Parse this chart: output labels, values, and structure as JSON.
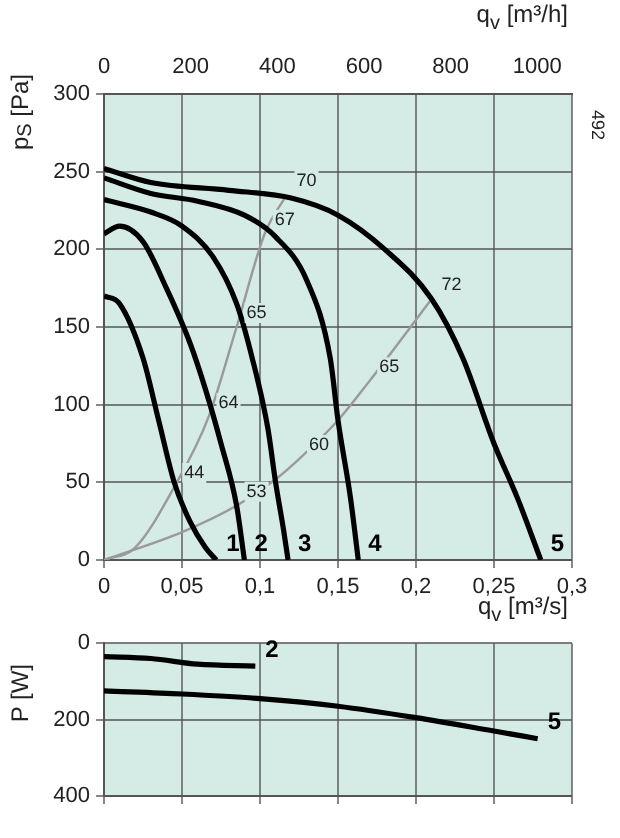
{
  "chart_data": [
    {
      "type": "line",
      "xlabel": "q$_{v}$ [m³/s]",
      "x2label": "q$_{v}$ [m³/h]",
      "ylabel": "p$_{S}$ [Pa]",
      "xlim": [
        0,
        0.3
      ],
      "xticks": [
        0,
        {
          "value": 0.05,
          "label": "0,05"
        },
        {
          "value": 0.1,
          "label": "0,1"
        },
        {
          "value": 0.15,
          "label": "0,15"
        },
        {
          "value": 0.2,
          "label": "0,2"
        },
        {
          "value": 0.25,
          "label": "0,25"
        },
        {
          "value": 0.3,
          "label": "0,3"
        }
      ],
      "x2lim": [
        0,
        1080
      ],
      "x2ticks": [
        0,
        200,
        400,
        600,
        800,
        1000
      ],
      "ylim": [
        0,
        300
      ],
      "yticks": [
        0,
        50,
        100,
        150,
        200,
        250,
        300
      ],
      "grid": true,
      "legend": false,
      "marker": "none",
      "series": [
        {
          "name": "1",
          "color": "#000000",
          "x": [
            0,
            0.01,
            0.025,
            0.035,
            0.045,
            0.055,
            0.065,
            0.072
          ],
          "values": [
            170,
            165,
            130,
            90,
            50,
            25,
            8,
            0
          ]
        },
        {
          "name": "2",
          "color": "#000000",
          "x": [
            0,
            0.01,
            0.025,
            0.04,
            0.055,
            0.065,
            0.075,
            0.085,
            0.09
          ],
          "values": [
            210,
            215,
            205,
            175,
            140,
            110,
            75,
            35,
            0
          ]
        },
        {
          "name": "3",
          "color": "#000000",
          "x": [
            0,
            0.03,
            0.05,
            0.07,
            0.085,
            0.095,
            0.105,
            0.11,
            0.115,
            0.118
          ],
          "values": [
            232,
            224,
            215,
            195,
            165,
            130,
            85,
            50,
            20,
            0
          ]
        },
        {
          "name": "4",
          "color": "#000000",
          "x": [
            0,
            0.03,
            0.06,
            0.09,
            0.11,
            0.13,
            0.145,
            0.15,
            0.158,
            0.163
          ],
          "values": [
            246,
            236,
            231,
            222,
            208,
            180,
            130,
            90,
            40,
            0
          ]
        },
        {
          "name": "5",
          "color": "#000000",
          "x": [
            0,
            0.03,
            0.08,
            0.12,
            0.15,
            0.18,
            0.21,
            0.23,
            0.25,
            0.265,
            0.28
          ],
          "values": [
            252,
            243,
            238,
            233,
            222,
            200,
            168,
            130,
            75,
            40,
            0
          ]
        },
        {
          "color": "#9a9a9a",
          "x": [
            0,
            0.02,
            0.045,
            0.067,
            0.085,
            0.103,
            0.117
          ],
          "values": [
            0,
            8,
            47,
            92,
            150,
            210,
            235
          ]
        },
        {
          "color": "#9a9a9a",
          "x": [
            0,
            0.05,
            0.085,
            0.11,
            0.125,
            0.15,
            0.17,
            0.21
          ],
          "values": [
            0,
            18,
            35,
            52,
            65,
            90,
            115,
            168
          ]
        }
      ],
      "annotations": [
        "492",
        {
          "text": "44",
          "x": 0.045,
          "y": 47
        },
        {
          "text": "53",
          "x": 0.085,
          "y": 35
        },
        {
          "text": "64",
          "x": 0.067,
          "y": 92
        },
        {
          "text": "65",
          "x": 0.085,
          "y": 150
        },
        {
          "text": "60",
          "x": 0.125,
          "y": 65
        },
        {
          "text": "65",
          "x": 0.17,
          "y": 115
        },
        {
          "text": "67",
          "x": 0.103,
          "y": 210
        },
        {
          "text": "70",
          "x": 0.117,
          "y": 235
        },
        {
          "text": "72",
          "x": 0.21,
          "y": 168
        }
      ]
    },
    {
      "type": "line",
      "ylabel": "P [W]",
      "xlim": [
        0,
        0.3
      ],
      "xticks": [
        0,
        0.05,
        0.1,
        0.15,
        0.2,
        0.25,
        0.3
      ],
      "ylim": [
        400,
        0
      ],
      "yticks": [
        0,
        200,
        400
      ],
      "tick_labels": "y",
      "grid": true,
      "legend": false,
      "marker": "none",
      "series": [
        {
          "name": "2",
          "color": "#000000",
          "x": [
            0,
            0.03,
            0.06,
            0.097
          ],
          "values": [
            35,
            40,
            55,
            60
          ]
        },
        {
          "name": "5",
          "color": "#000000",
          "x": [
            0,
            0.05,
            0.1,
            0.15,
            0.2,
            0.25,
            0.278
          ],
          "values": [
            125,
            133,
            145,
            165,
            195,
            230,
            250
          ]
        }
      ]
    }
  ]
}
